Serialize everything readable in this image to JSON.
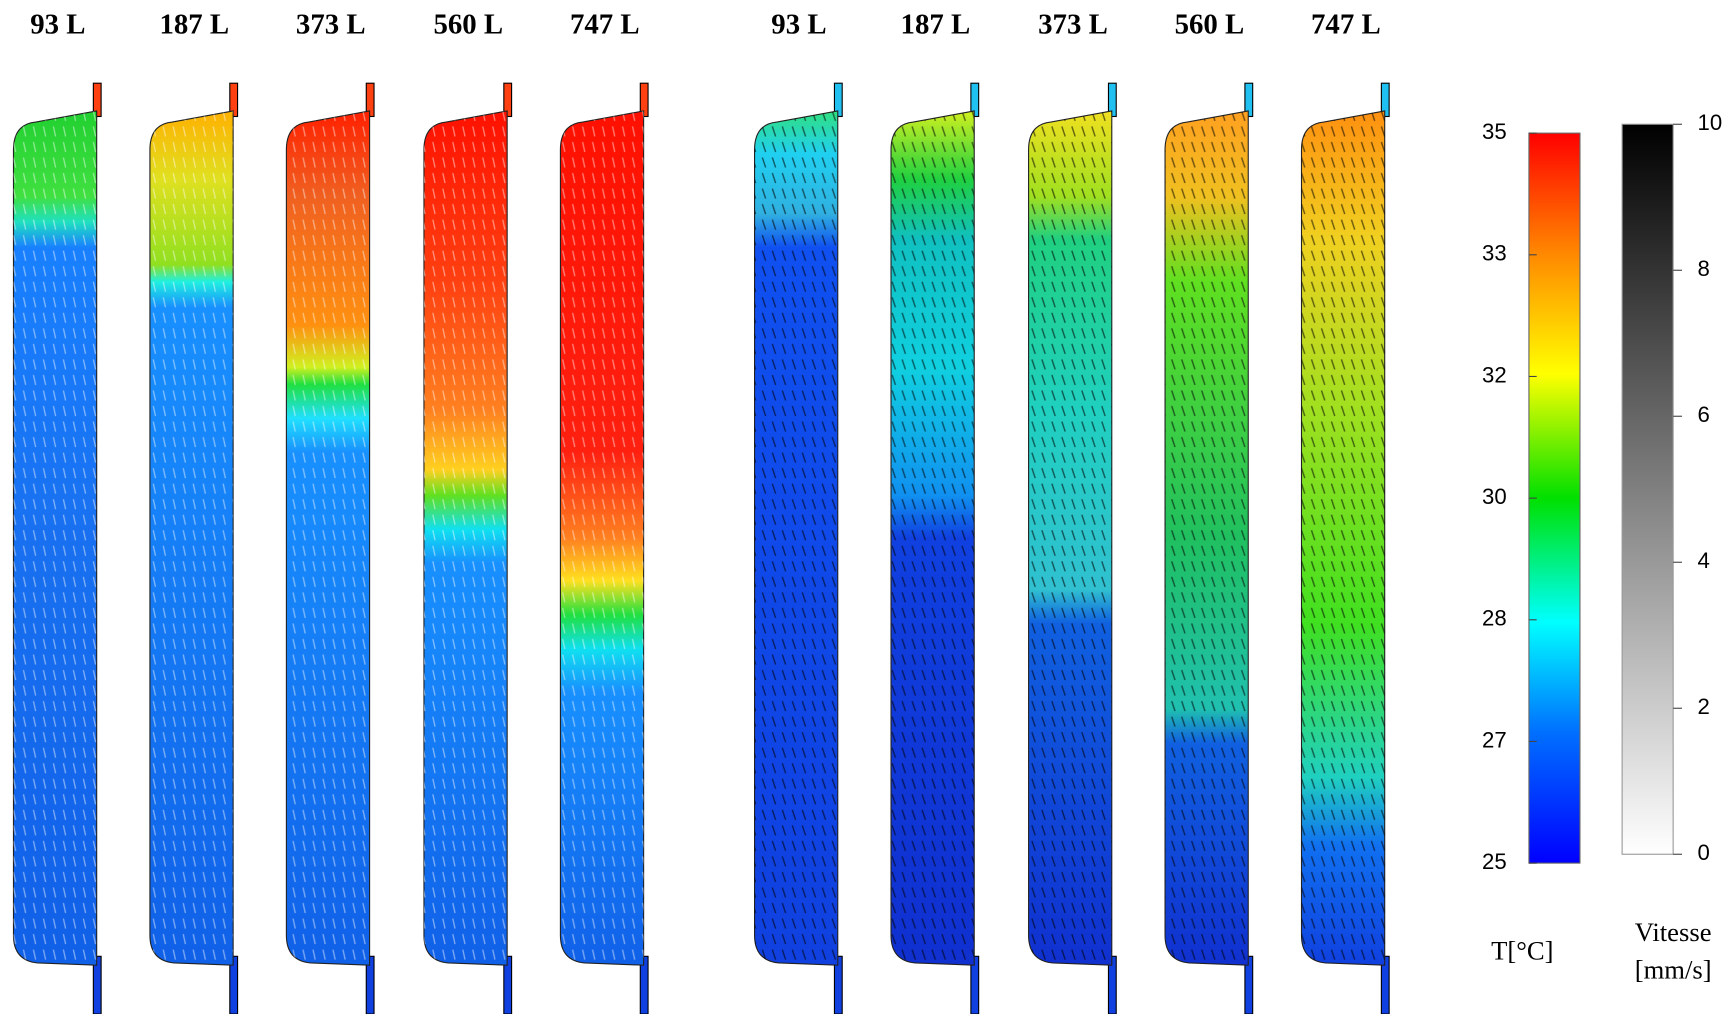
{
  "panel_labels": [
    "93 L",
    "187 L",
    "373 L",
    "560 L",
    "747 L",
    "93 L",
    "187 L",
    "373 L",
    "560 L",
    "747 L"
  ],
  "temperature_scale": {
    "label": "T[°C]",
    "lim": [
      25,
      35
    ],
    "ticks": [
      25,
      27,
      28,
      30,
      32,
      33,
      35
    ]
  },
  "velocity_scale": {
    "label": [
      "Vitesse",
      "[mm/s]"
    ],
    "lim": [
      0,
      10
    ],
    "ticks": [
      0,
      2,
      4,
      6,
      8,
      10
    ]
  }
}
